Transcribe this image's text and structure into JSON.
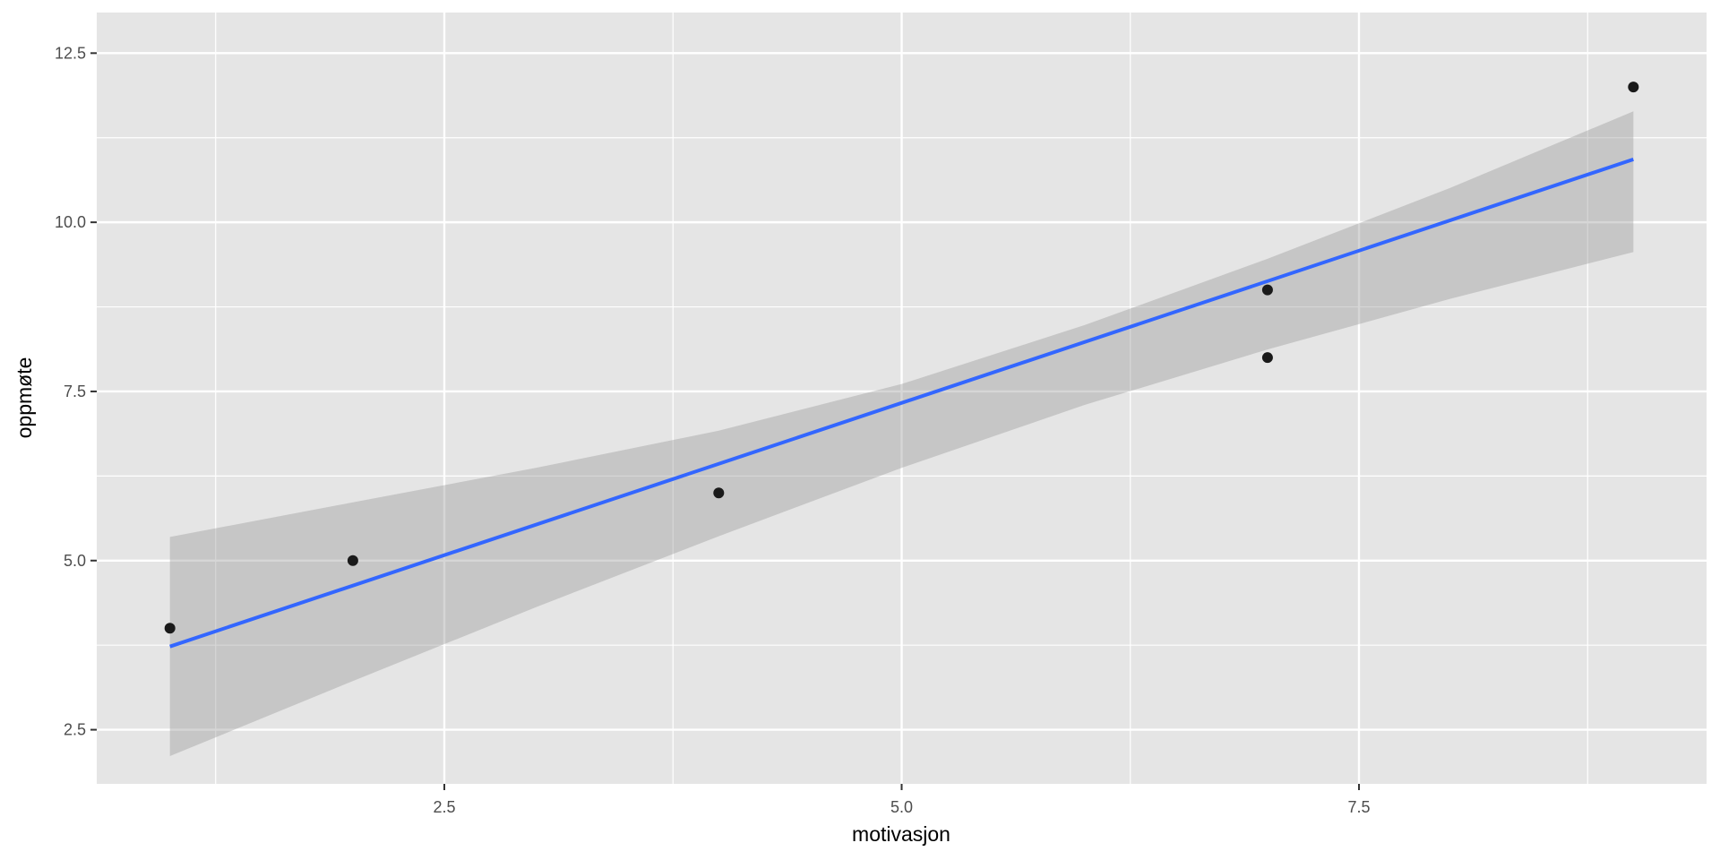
{
  "chart_data": {
    "type": "scatter",
    "xlabel": "motivasjon",
    "ylabel": "oppmøte",
    "xlim": [
      0.6,
      9.4
    ],
    "ylim": [
      1.7,
      13.1
    ],
    "x_ticks": [
      2.5,
      5.0,
      7.5
    ],
    "x_tick_labels": [
      "2.5",
      "5.0",
      "7.5"
    ],
    "y_ticks": [
      2.5,
      5.0,
      7.5,
      10.0,
      12.5
    ],
    "y_tick_labels": [
      "2.5",
      "5.0",
      "7.5",
      "10.0",
      "12.5"
    ],
    "grid": true,
    "points": {
      "x": [
        1,
        2,
        4,
        7,
        7,
        9
      ],
      "y": [
        4,
        5,
        6,
        8,
        9,
        12
      ]
    },
    "regression": {
      "method": "lm",
      "slope": 0.9,
      "intercept": 2.83,
      "x_range": [
        1,
        9
      ],
      "confidence_band": {
        "x": [
          1,
          2,
          3,
          4,
          5,
          6,
          7,
          8,
          9
        ],
        "lower": [
          2.11,
          3.22,
          4.31,
          5.36,
          6.37,
          7.3,
          8.12,
          8.87,
          9.56
        ],
        "upper": [
          5.35,
          5.86,
          6.37,
          6.92,
          7.61,
          8.48,
          9.46,
          10.51,
          11.64
        ]
      }
    },
    "colors": {
      "panel_background": "#e5e5e5",
      "grid": "#ffffff",
      "points": "#1a1a1a",
      "line": "#3366ff",
      "band": "#999999"
    }
  }
}
